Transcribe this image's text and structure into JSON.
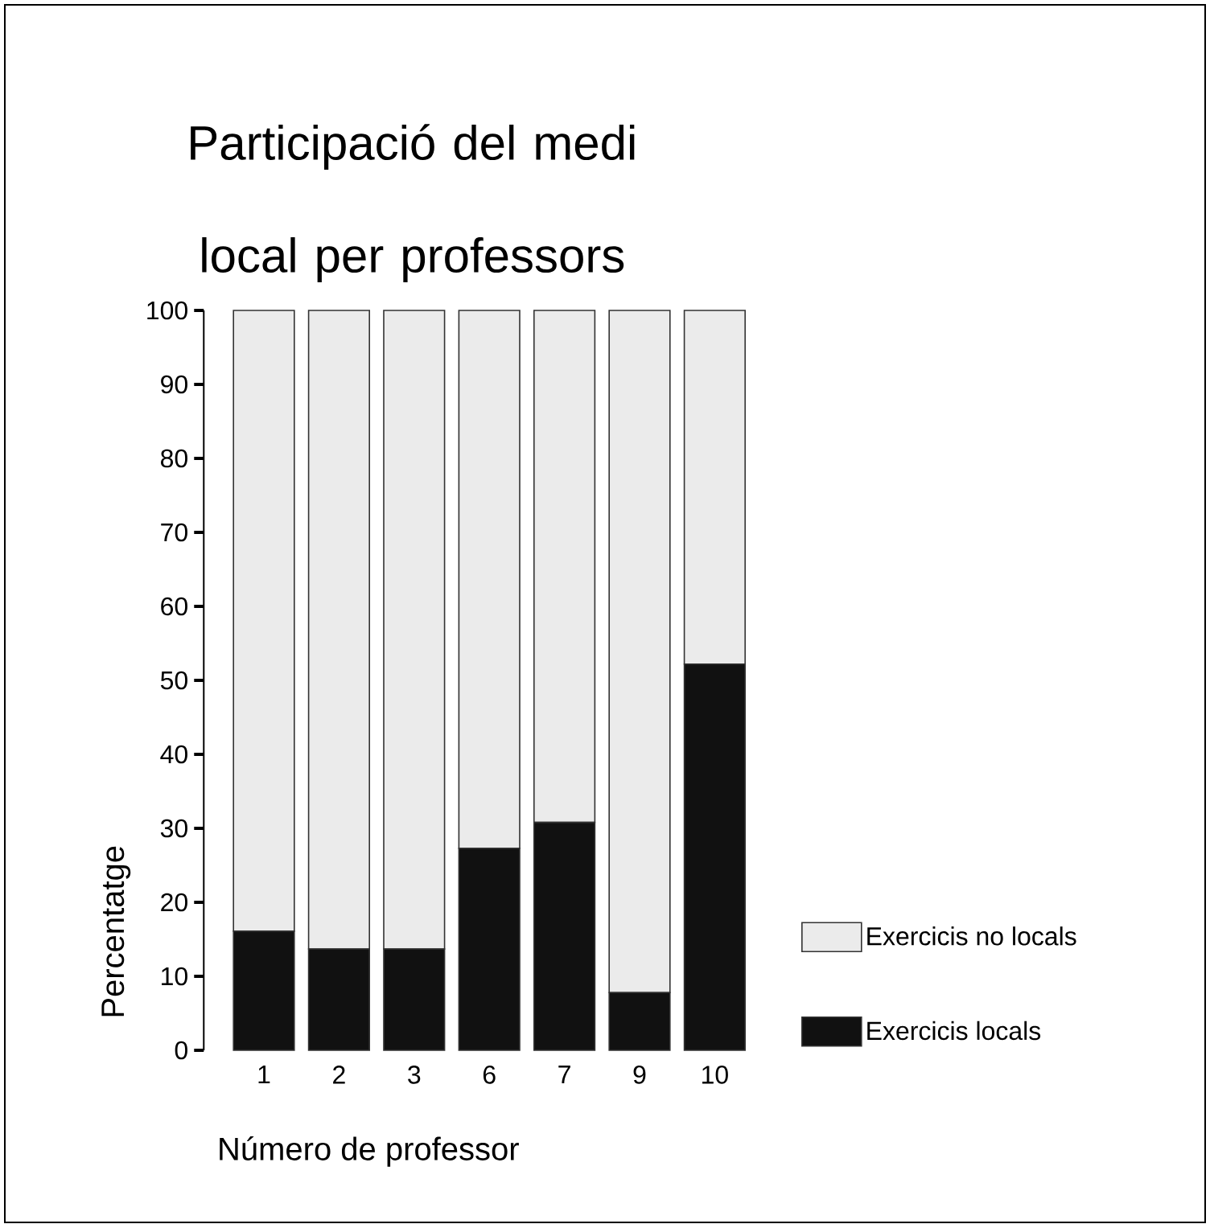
{
  "chart_data": {
    "type": "bar",
    "stacked": true,
    "title": "Participació del medi local per professors",
    "xlabel": "Número de professor",
    "ylabel": "Percentatge",
    "categories": [
      "1",
      "2",
      "3",
      "6",
      "7",
      "9",
      "10"
    ],
    "series": [
      {
        "name": "Exercicis locals",
        "color": "#111111",
        "values": [
          16.1,
          13.7,
          13.7,
          27.3,
          30.8,
          7.8,
          52.2
        ]
      },
      {
        "name": "Exercicis no locals",
        "color": "#ebebeb",
        "values": [
          83.9,
          86.3,
          86.3,
          72.7,
          69.2,
          92.2,
          47.8
        ]
      }
    ],
    "ylim": [
      0,
      100
    ],
    "yticks": [
      0,
      10,
      20,
      30,
      40,
      50,
      60,
      70,
      80,
      90,
      100
    ],
    "legend": "right",
    "grid": false
  }
}
